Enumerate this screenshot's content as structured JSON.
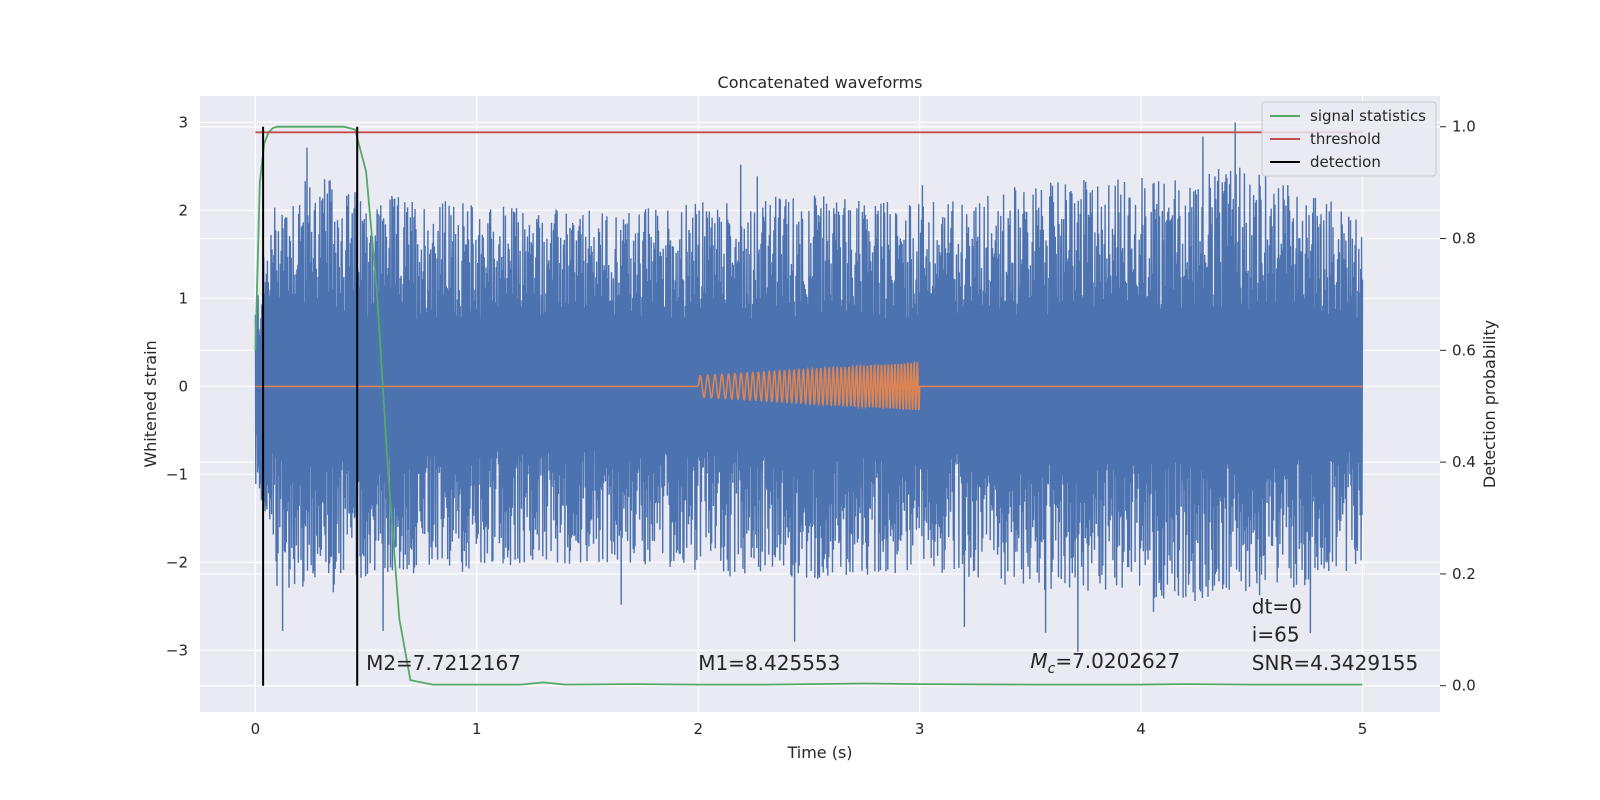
{
  "chart_data": {
    "type": "line",
    "title": "Concatenated waveforms",
    "xlabel": "Time (s)",
    "ylabel": "Whitened strain",
    "ylabel_right": "Detection probability",
    "xlim": [
      -0.25,
      5.35
    ],
    "ylim": [
      -3.7,
      3.3
    ],
    "ylim_right": [
      -0.047,
      1.055
    ],
    "xticks": [
      0,
      1,
      2,
      3,
      4,
      5
    ],
    "xtick_labels": [
      "0",
      "1",
      "2",
      "3",
      "4",
      "5"
    ],
    "yticks": [
      -3,
      -2,
      -1,
      0,
      1,
      2,
      3
    ],
    "ytick_labels": [
      "−3",
      "−2",
      "−1",
      "0",
      "1",
      "2",
      "3"
    ],
    "yticks_right": [
      0.0,
      0.2,
      0.4,
      0.6,
      0.8,
      1.0
    ],
    "ytick_right_labels": [
      "0.0",
      "0.2",
      "0.4",
      "0.6",
      "0.8",
      "1.0"
    ],
    "grid": true,
    "legend_position": "top-right",
    "legend": [
      "signal statistics",
      "threshold",
      "detection"
    ],
    "colors": {
      "noise": "#4c72b0",
      "injected_signal": "#dd8452",
      "signal_statistics": "#55a868",
      "threshold": "#c44e52",
      "detection": "#000000",
      "background": "#eaeaf2",
      "grid": "#ffffff"
    },
    "series": [
      {
        "name": "signal statistics",
        "axis": "right",
        "x": [
          0.0,
          0.02,
          0.04,
          0.06,
          0.08,
          0.1,
          0.2,
          0.3,
          0.4,
          0.45,
          0.5,
          0.55,
          0.6,
          0.65,
          0.7,
          0.8,
          1.0,
          1.2,
          1.3,
          1.4,
          1.7,
          2.0,
          2.3,
          2.75,
          3.0,
          3.5,
          4.0,
          4.2,
          4.5,
          5.0
        ],
        "y": [
          0.6,
          0.9,
          0.97,
          0.99,
          0.998,
          1.0,
          1.0,
          1.0,
          1.0,
          0.995,
          0.92,
          0.7,
          0.38,
          0.12,
          0.01,
          0.002,
          0.002,
          0.002,
          0.006,
          0.002,
          0.003,
          0.002,
          0.002,
          0.004,
          0.003,
          0.002,
          0.002,
          0.003,
          0.002,
          0.002
        ]
      },
      {
        "name": "threshold",
        "axis": "right",
        "x": [
          0.0,
          5.0
        ],
        "y": [
          0.99,
          0.99
        ]
      },
      {
        "name": "detection",
        "axis": "right",
        "type": "vlines",
        "x": [
          0.035,
          0.46
        ],
        "y_range": [
          0.0,
          1.0
        ]
      }
    ],
    "noise_envelope": {
      "x": [
        0.0,
        0.1,
        0.3,
        0.5,
        1.0,
        1.5,
        2.0,
        2.5,
        3.0,
        3.5,
        4.0,
        4.5,
        5.0
      ],
      "amplitude": [
        1.0,
        2.3,
        2.4,
        2.2,
        2.1,
        2.0,
        2.1,
        2.2,
        2.1,
        2.3,
        2.4,
        2.5,
        2.0
      ]
    },
    "injected_chirp": {
      "t_start": 2.0,
      "t_end": 3.0,
      "amp_start": 0.12,
      "amp_end": 0.27
    },
    "annotations": [
      {
        "text": "M2=7.7212167",
        "x": 0.5,
        "y": -3.22
      },
      {
        "text": "M1=8.425553",
        "x": 2.0,
        "y": -3.22
      },
      {
        "text_italic": "M",
        "text_sub": "c",
        "text": "=7.0202627",
        "x": 3.5,
        "y": -3.2
      },
      {
        "text": "SNR=4.3429155",
        "x": 4.5,
        "y": -3.22
      },
      {
        "text": "i=65",
        "x": 4.5,
        "y": -2.9
      },
      {
        "text": "dt=0",
        "x": 4.5,
        "y": -2.58
      }
    ]
  }
}
